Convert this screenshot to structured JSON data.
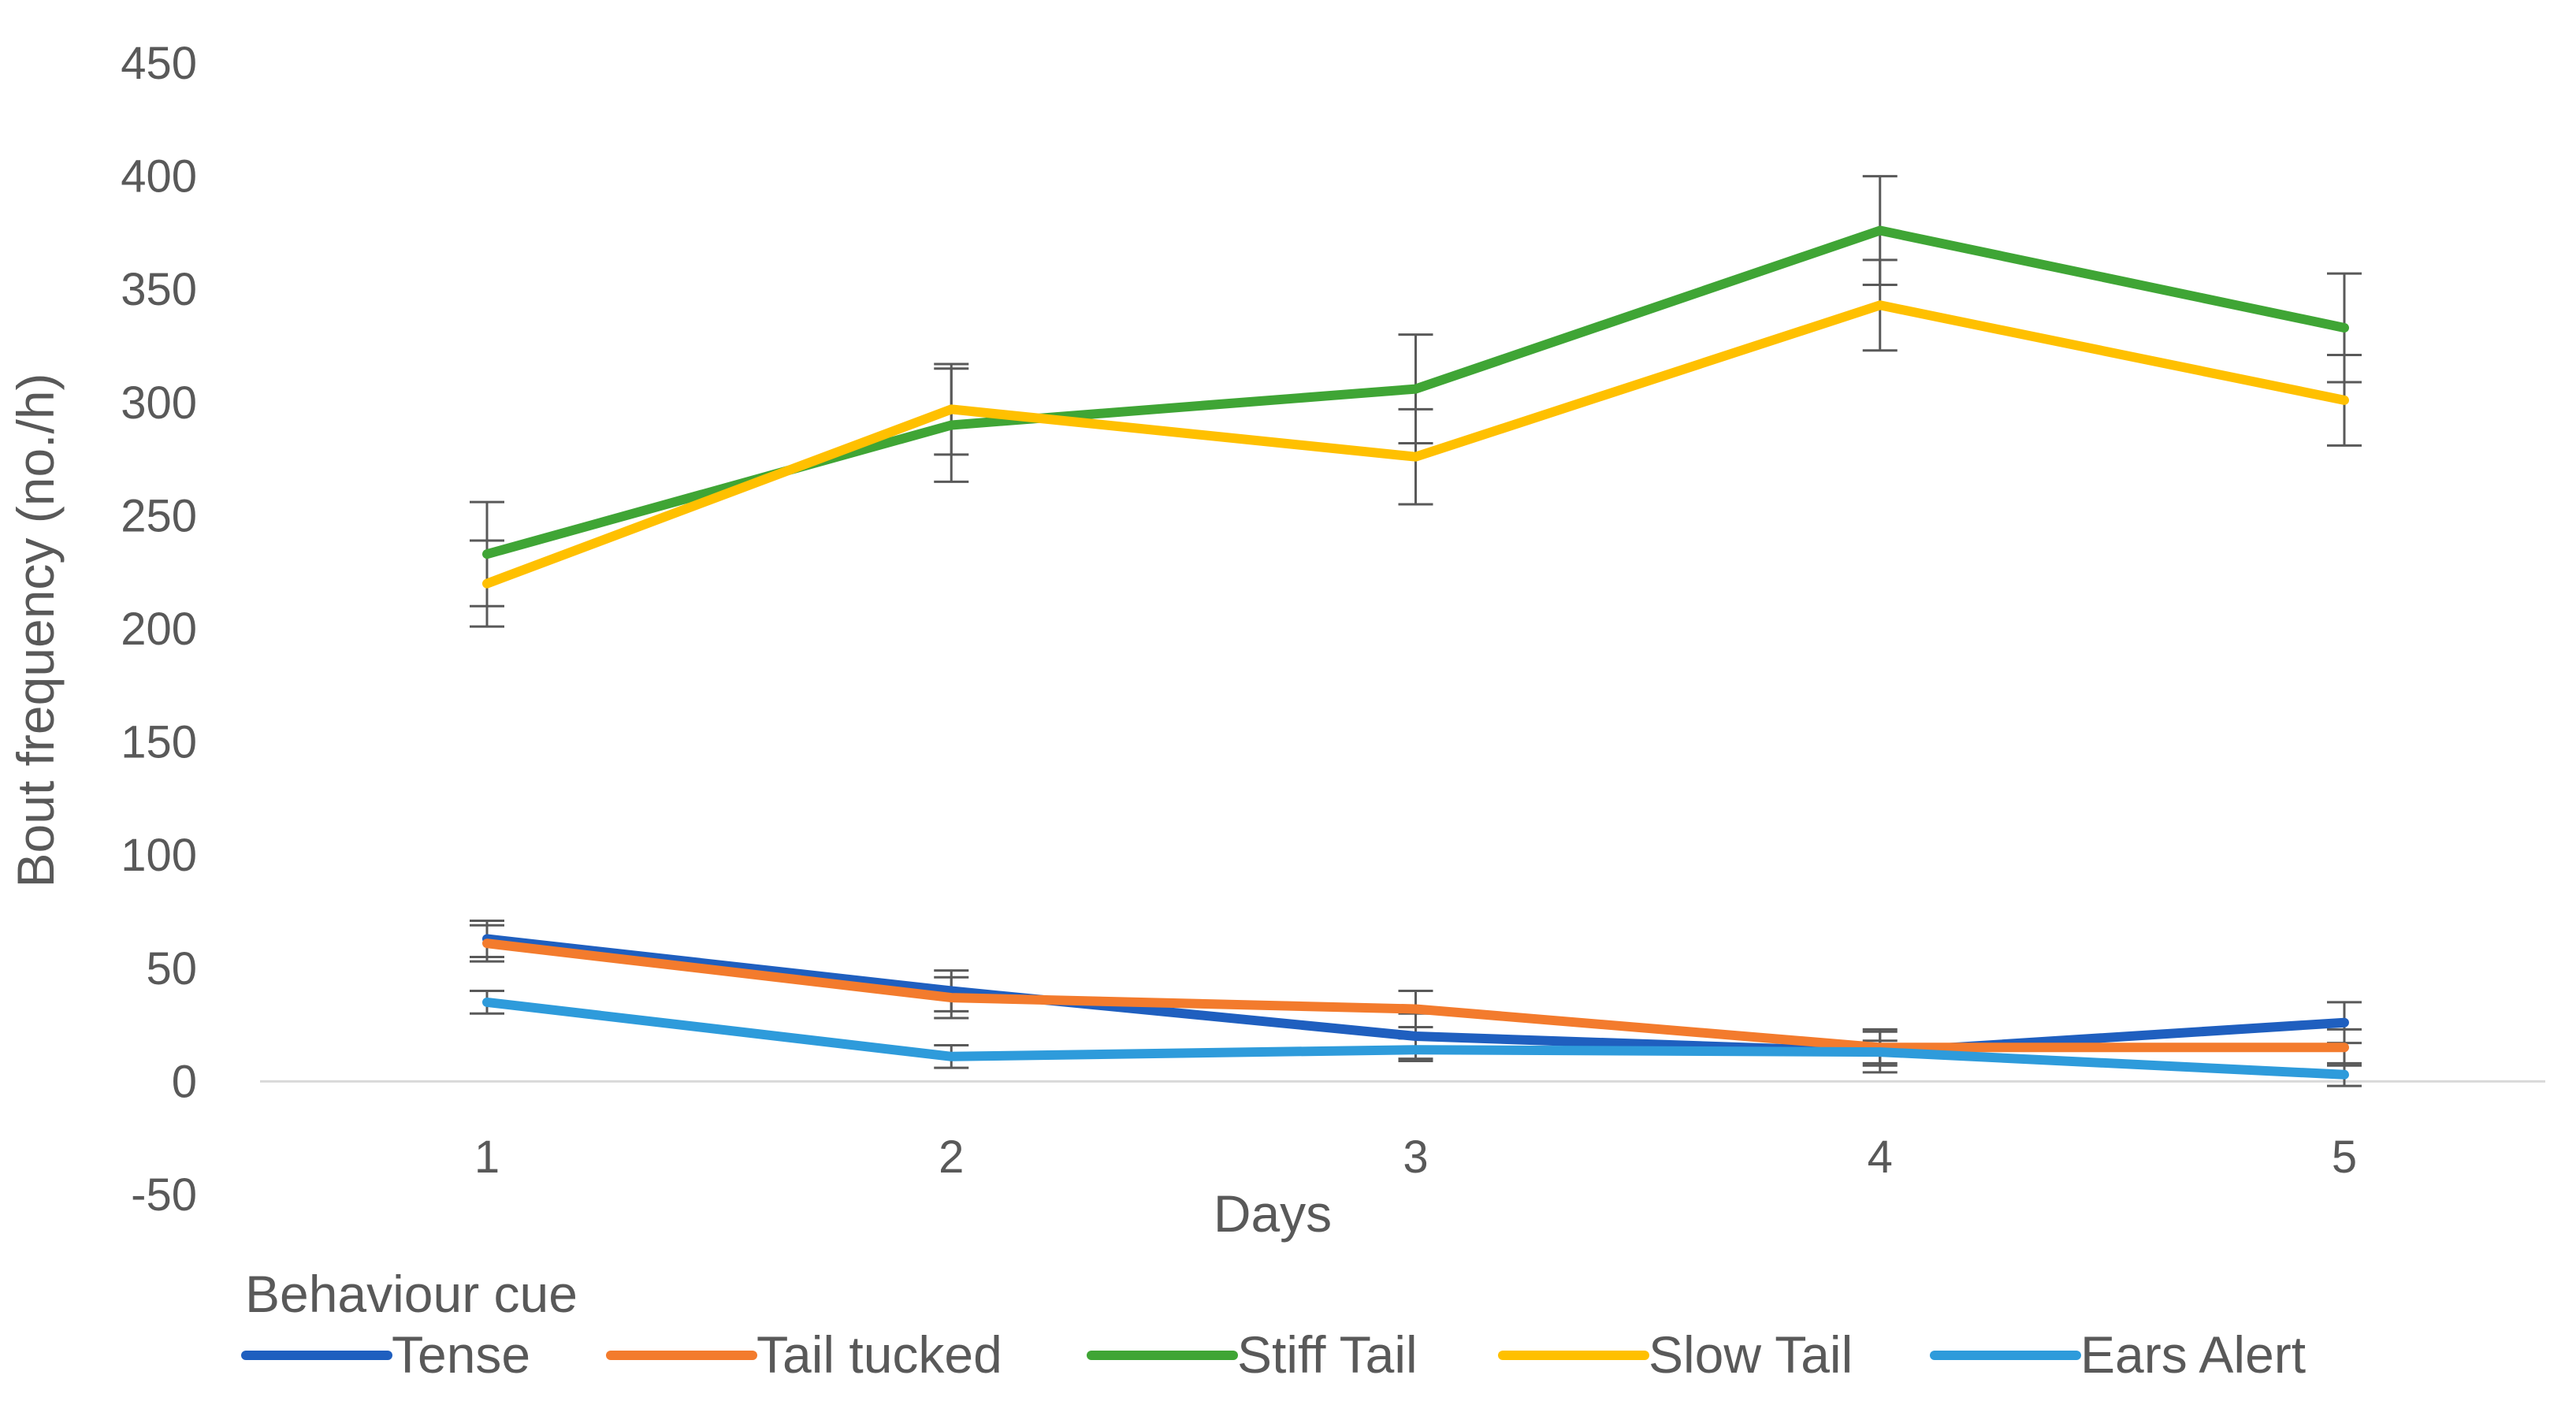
{
  "chart_data": {
    "type": "line",
    "title": "",
    "xlabel": "Days",
    "ylabel": "Bout frequency (no./h)",
    "x": [
      1,
      2,
      3,
      4,
      5
    ],
    "x_tick_labels": [
      "1",
      "2",
      "3",
      "4",
      "5"
    ],
    "ylim": [
      -50,
      450
    ],
    "y_ticks": [
      -50,
      0,
      50,
      100,
      150,
      200,
      250,
      300,
      350,
      400,
      450
    ],
    "grid": false,
    "legend": {
      "title": "Behaviour cue",
      "position": "bottom"
    },
    "series": [
      {
        "name": "Tense",
        "color": "#1F5FBF",
        "values": [
          63,
          40,
          20,
          13,
          26
        ],
        "errors": [
          8,
          9,
          10,
          9,
          9
        ]
      },
      {
        "name": "Tail tucked",
        "color": "#F37B2D",
        "values": [
          61,
          37,
          32,
          15,
          15
        ],
        "errors": [
          8,
          9,
          8,
          8,
          8
        ]
      },
      {
        "name": "Stiff Tail",
        "color": "#3FA535",
        "values": [
          233,
          290,
          306,
          376,
          333
        ],
        "errors": [
          23,
          25,
          24,
          24,
          24
        ]
      },
      {
        "name": "Slow Tail",
        "color": "#FFC000",
        "values": [
          220,
          297,
          276,
          343,
          301
        ],
        "errors": [
          19,
          20,
          21,
          20,
          20
        ]
      },
      {
        "name": "Ears Alert",
        "color": "#2E9BDB",
        "values": [
          35,
          11,
          14,
          13,
          3
        ],
        "errors": [
          5,
          5,
          5,
          5,
          5
        ]
      }
    ]
  }
}
